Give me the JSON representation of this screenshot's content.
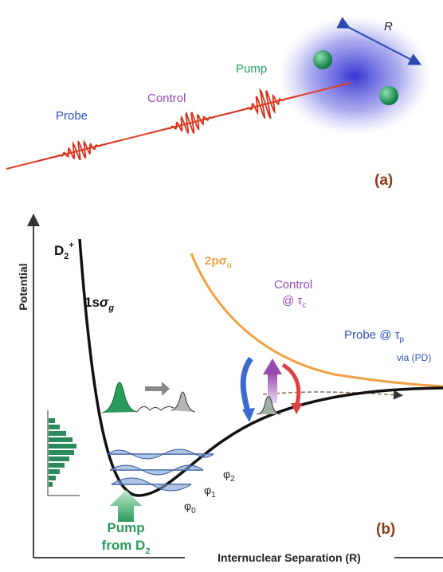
{
  "panel_a": {
    "probe": "Probe",
    "control": "Control",
    "pump": "Pump",
    "separation": "R",
    "label": "(a)"
  },
  "panel_b": {
    "ion": {
      "base": "D",
      "sub": "2",
      "sup": "+"
    },
    "ground_state": {
      "base": "1s",
      "sym": "σ",
      "sub": "g"
    },
    "excited_state": {
      "base": "2pσ",
      "sub": "u"
    },
    "y_axis": "Potential",
    "x_axis": "Internuclear Separation (R)",
    "control": {
      "line1": "Control",
      "line2": "@ τ",
      "sub": "c"
    },
    "probe": {
      "line1": "Probe @ τ",
      "sub": "p",
      "line2": "via (PD)"
    },
    "levels": [
      {
        "base": "φ",
        "sub": "2"
      },
      {
        "base": "φ",
        "sub": "1"
      },
      {
        "base": "φ",
        "sub": "0"
      }
    ],
    "pump": {
      "line1": "Pump",
      "line2": "from D",
      "sub": "2"
    },
    "label": "(b)"
  }
}
